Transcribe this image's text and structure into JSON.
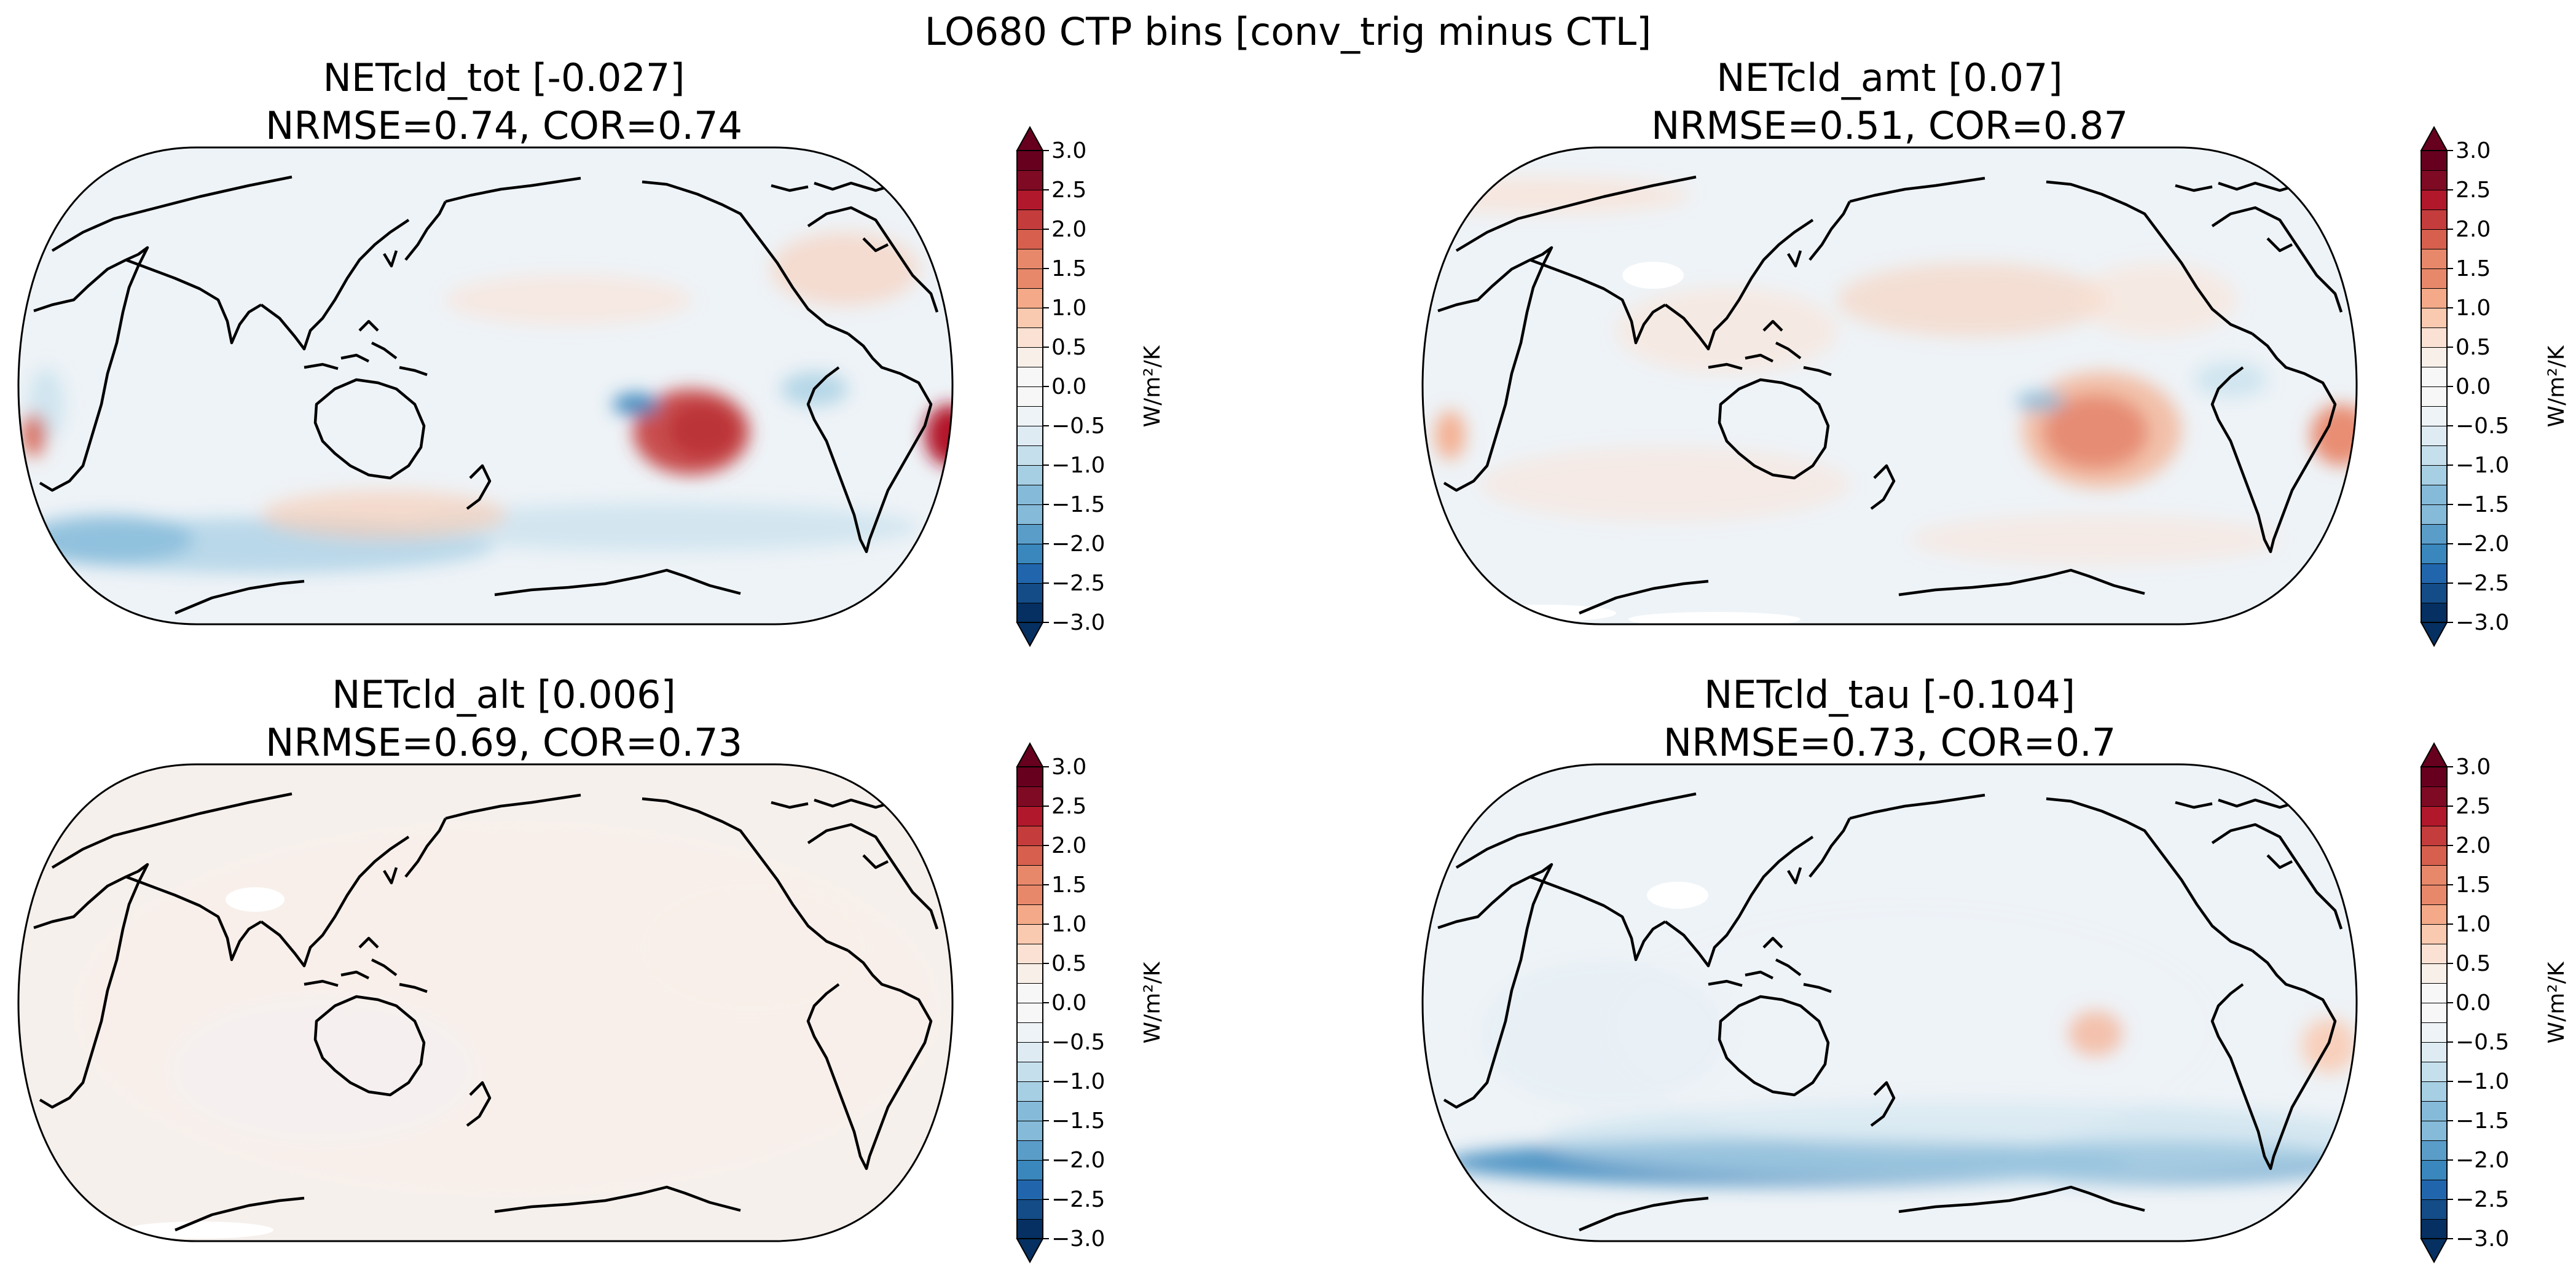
{
  "figure": {
    "suptitle": "LO680 CTP bins [conv_trig minus CTL]"
  },
  "panels": [
    {
      "title_line1": "NETcld_tot [-0.027]",
      "title_line2": "NRMSE=0.74, COR=0.74"
    },
    {
      "title_line1": "NETcld_amt [0.07]",
      "title_line2": "NRMSE=0.51, COR=0.87"
    },
    {
      "title_line1": "NETcld_alt [0.006]",
      "title_line2": "NRMSE=0.69, COR=0.73"
    },
    {
      "title_line1": "NETcld_tau [-0.104]",
      "title_line2": "NRMSE=0.73, COR=0.7"
    }
  ],
  "colorbar": {
    "label": "W/m²/K",
    "ticks": [
      "3.0",
      "2.5",
      "2.0",
      "1.5",
      "1.0",
      "0.5",
      "0.0",
      "−0.5",
      "−1.0",
      "−1.5",
      "−2.0",
      "−2.5",
      "−3.0"
    ],
    "vmin": -3.0,
    "vmax": 3.0,
    "levels": 24,
    "extend": "both",
    "colormap": "RdBu_r",
    "colors": [
      "#053061",
      "#134c87",
      "#2166ac",
      "#3a87bd",
      "#5a9dc9",
      "#85bad9",
      "#a7cfe4",
      "#c5dfec",
      "#deebf3",
      "#eef3f7",
      "#f7f7f7",
      "#f9efe9",
      "#fbe1d3",
      "#f9c9b0",
      "#f4aa88",
      "#e8886b",
      "#d6604d",
      "#c43c3c",
      "#b2182b",
      "#7e0a23",
      "#67001f"
    ]
  },
  "chart_data": {
    "type": "heatmap",
    "title": "LO680 CTP bins [conv_trig minus CTL]",
    "projection": "Robinson, centered on Pacific",
    "units": "W/m²/K",
    "colorbar_range": [
      -3.0,
      3.0
    ],
    "colorbar_step": 0.25,
    "panels": [
      {
        "name": "NETcld_tot",
        "global_mean": -0.027,
        "NRMSE": 0.74,
        "COR": 0.74
      },
      {
        "name": "NETcld_amt",
        "global_mean": 0.07,
        "NRMSE": 0.51,
        "COR": 0.87
      },
      {
        "name": "NETcld_alt",
        "global_mean": 0.006,
        "NRMSE": 0.69,
        "COR": 0.73
      },
      {
        "name": "NETcld_tau",
        "global_mean": -0.104,
        "NRMSE": 0.73,
        "COR": 0.7
      }
    ]
  }
}
